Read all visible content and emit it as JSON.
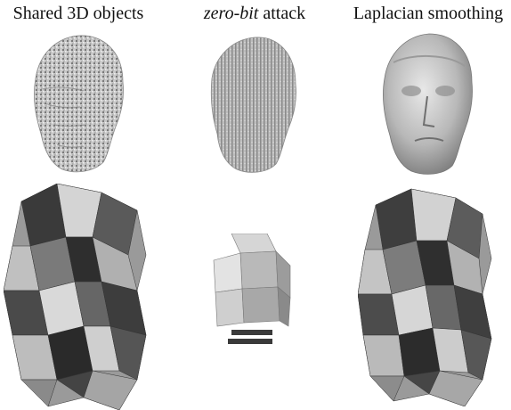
{
  "figure": {
    "columns": [
      {
        "title": "Shared 3D objects"
      },
      {
        "title_italic": "zero-bit",
        "title_rest": " attack"
      },
      {
        "title": "Laplacian smoothing"
      }
    ]
  }
}
